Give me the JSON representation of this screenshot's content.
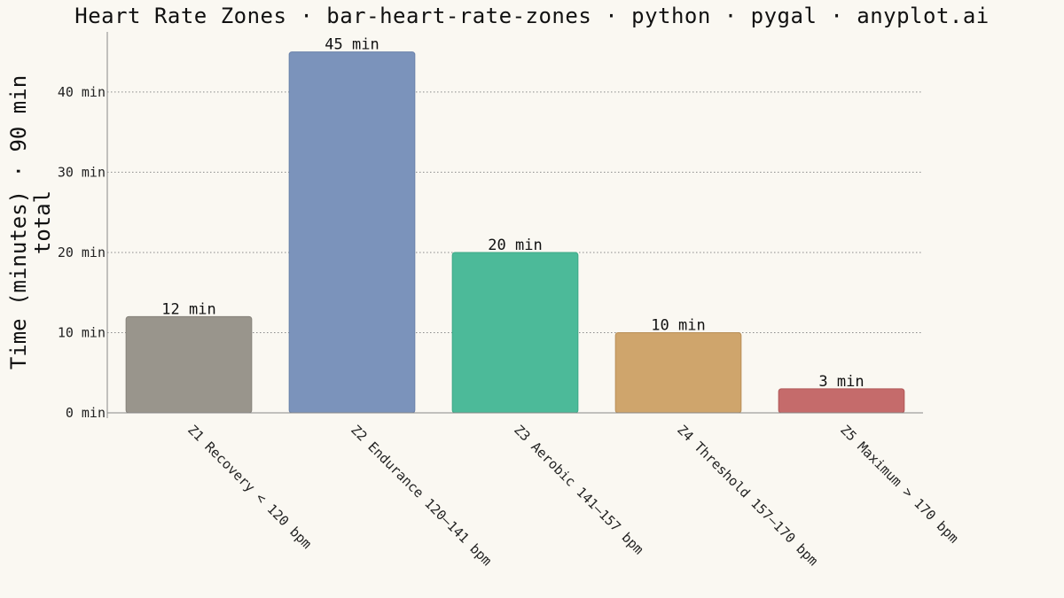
{
  "chart_data": {
    "type": "bar",
    "title": "Heart Rate Zones · bar-heart-rate-zones · python · pygal · anyplot.ai",
    "ylabel_lines": [
      "Time (minutes) · 90 min",
      "total"
    ],
    "xlabel": "",
    "categories": [
      "Z1 Recovery < 120 bpm",
      "Z2 Endurance 120–141 bpm",
      "Z3 Aerobic 141–157 bpm",
      "Z4 Threshold 157–170 bpm",
      "Z5 Maximum > 170 bpm"
    ],
    "values": [
      12,
      45,
      20,
      10,
      3
    ],
    "value_labels": [
      "12 min",
      "45 min",
      "20 min",
      "10 min",
      "3 min"
    ],
    "colors": [
      "#99958c",
      "#7b93bb",
      "#4cba99",
      "#cfa56c",
      "#c56b6b"
    ],
    "border_colors": [
      "#85817a",
      "#6a82aa",
      "#3ca887",
      "#b98f58",
      "#b05858"
    ],
    "yticks": [
      0,
      10,
      20,
      30,
      40
    ],
    "ytick_labels": [
      "0 min",
      "10 min",
      "20 min",
      "30 min",
      "40 min"
    ],
    "ylim": [
      0,
      47.5
    ],
    "grid": "horizontal-dotted",
    "legend": "none"
  }
}
